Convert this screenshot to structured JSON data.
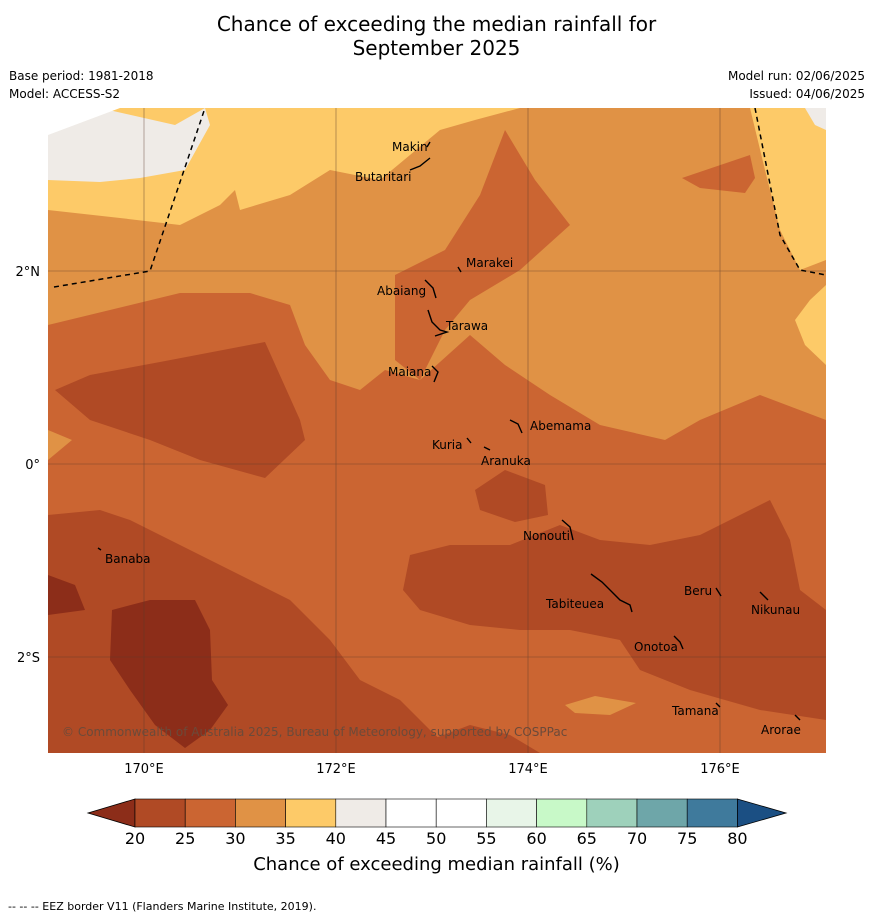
{
  "title_line1": "Chance of exceeding the median rainfall for",
  "title_line2": "September 2025",
  "meta": {
    "base_period": "Base period: 1981-2018",
    "model": "Model: ACCESS-S2",
    "model_run": "Model run: 02/06/2025",
    "issued": "Issued: 04/06/2025"
  },
  "map": {
    "x_ticks": [
      "170°E",
      "172°E",
      "174°E",
      "176°E"
    ],
    "y_ticks": [
      "2°N",
      "0°",
      "2°S"
    ],
    "copyright": "© Commonwealth of Australia 2025, Bureau of Meteorology, supported by COSPPac",
    "places": [
      "Makin",
      "Butaritari",
      "Marakei",
      "Abaiang",
      "Tarawa",
      "Maiana",
      "Abemama",
      "Kuria",
      "Aranuka",
      "Nonouti",
      "Banaba",
      "Beru",
      "Nikunau",
      "Tabiteuea",
      "Onotoa",
      "Tamana",
      "Arorae"
    ]
  },
  "colorbar": {
    "ticks": [
      "20",
      "25",
      "30",
      "35",
      "40",
      "45",
      "50",
      "55",
      "60",
      "65",
      "70",
      "75",
      "80"
    ],
    "colors": [
      "#8c2d19",
      "#b04a25",
      "#cb6532",
      "#e09245",
      "#fdca68",
      "#efebe7",
      "#ffffff",
      "#ffffff",
      "#e8f5e8",
      "#c8f9c8",
      "#9ed1bb",
      "#6ea6a9",
      "#3f7a9c",
      "#1b4f83"
    ],
    "label": "Chance of exceeding median rainfall (%)"
  },
  "footer": "--  --  -- EEZ border V11 (Flanders Marine Institute, 2019)."
}
